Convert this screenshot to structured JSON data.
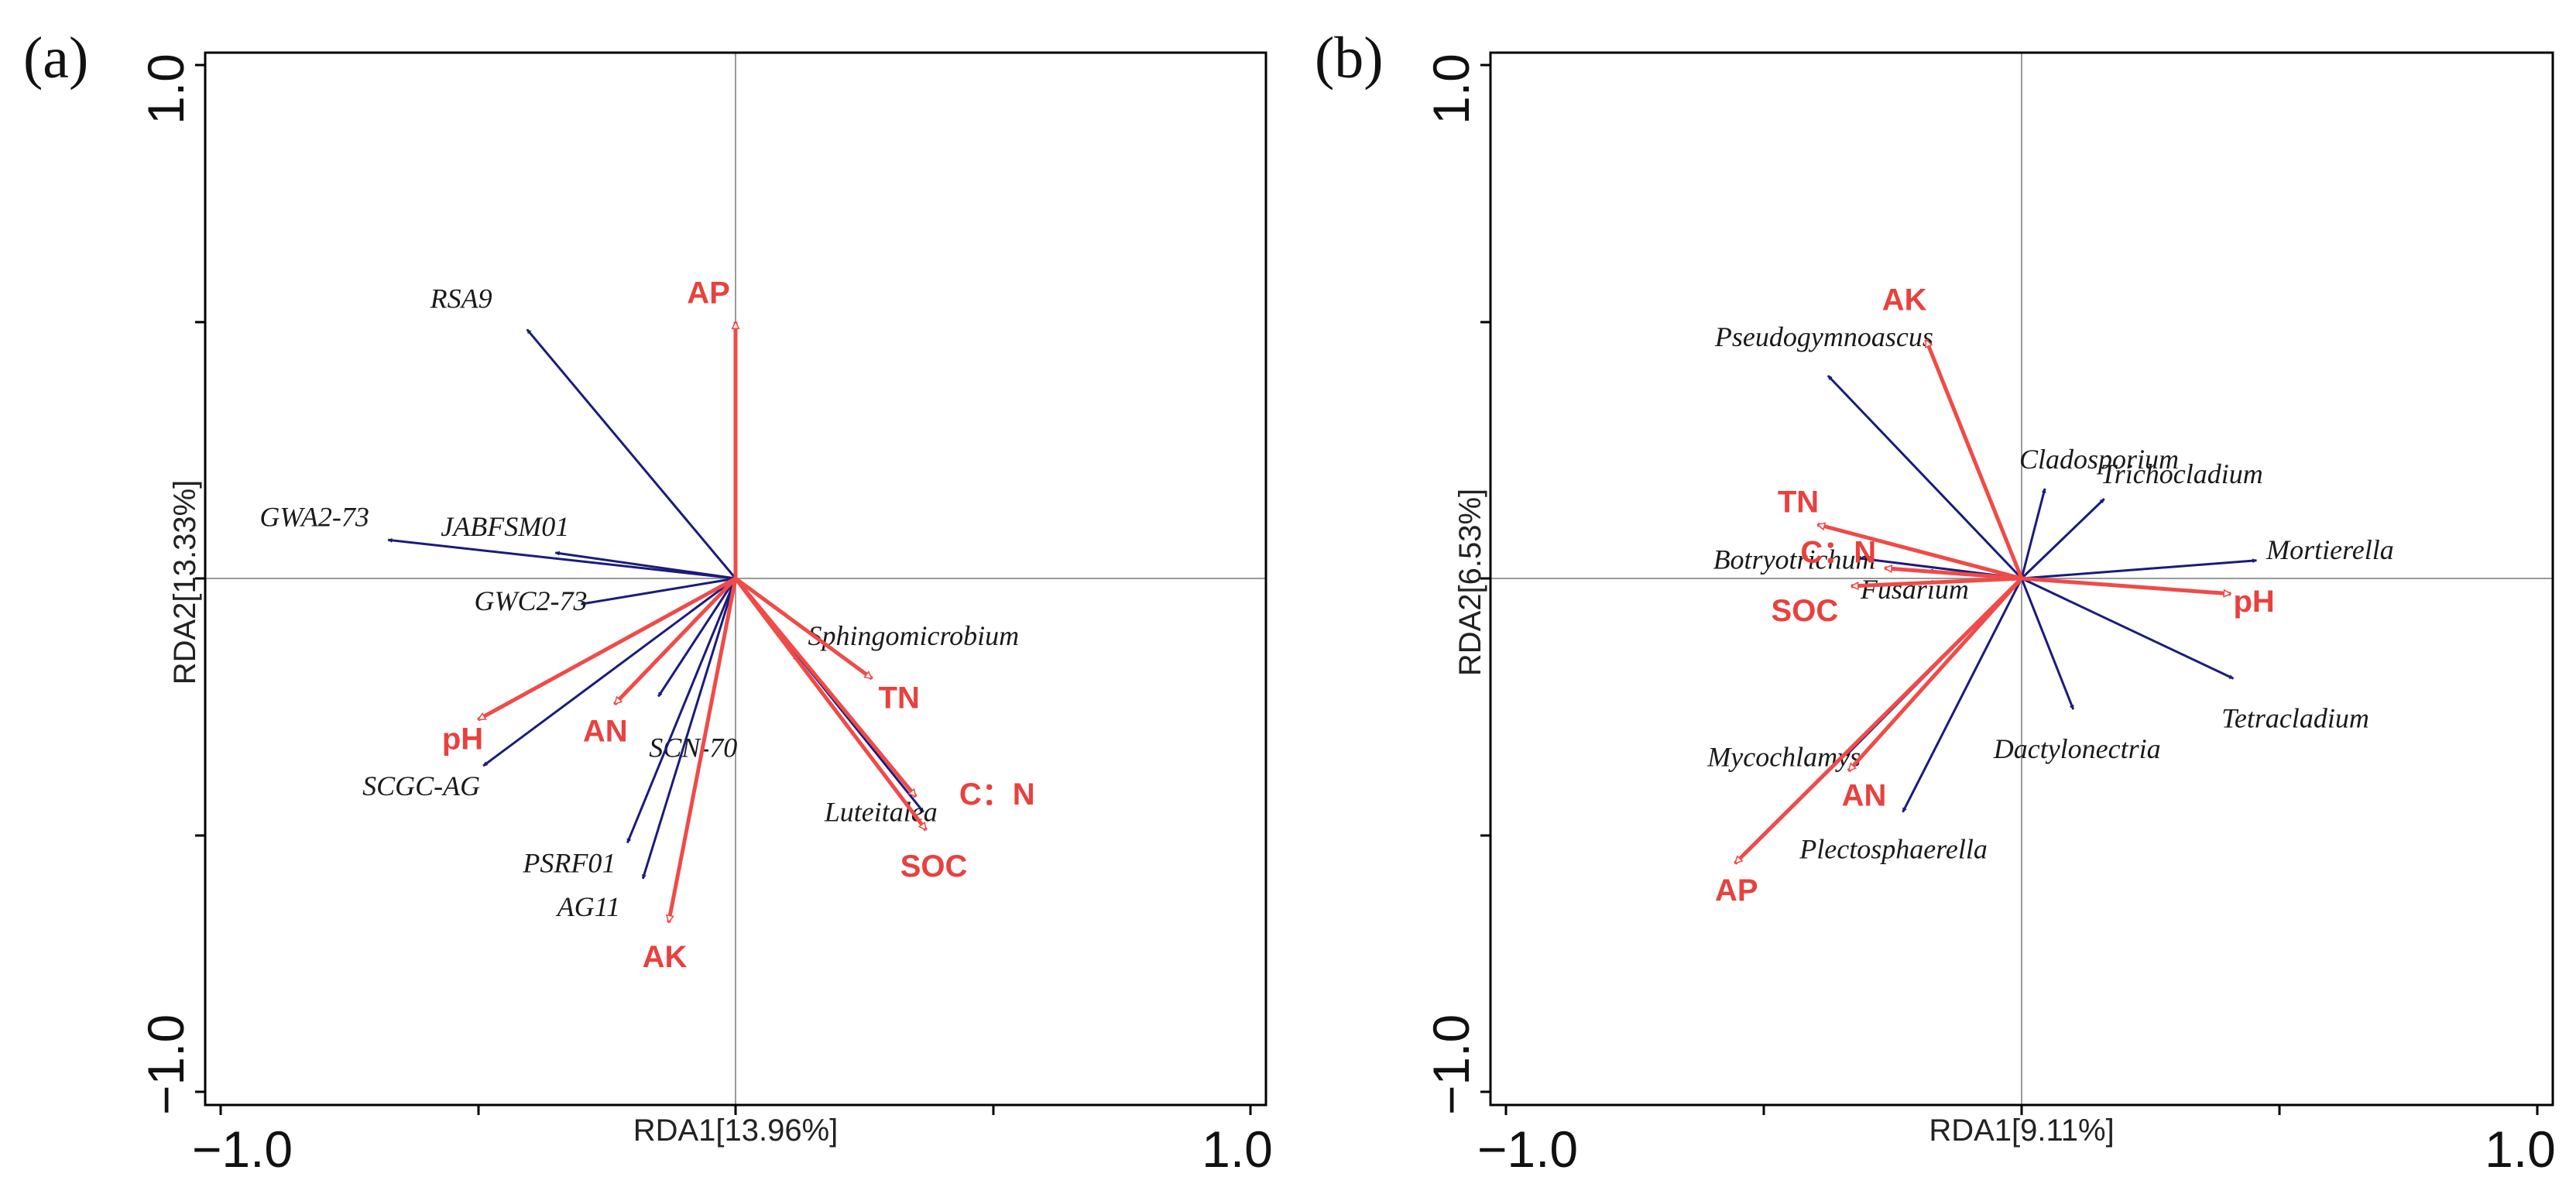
{
  "colors": {
    "species": "#1b1b7c",
    "env": "#ef4b48",
    "env_text": "#e8413e"
  },
  "chart_data": [
    {
      "type": "scatter",
      "panel_label": "(a)",
      "xlabel": "RDA1[13.96%]",
      "ylabel": "RDA2[13.33%]",
      "xlim": [
        -1.0,
        1.0
      ],
      "ylim": [
        -1.0,
        1.0
      ],
      "xtick_labels": [
        "−1.0",
        "1.0"
      ],
      "ytick_labels": [
        "1.0",
        "−1.0"
      ],
      "species": [
        {
          "name": "RSA9",
          "x": -0.405,
          "y": 0.485
        },
        {
          "name": "GWA2-73",
          "x": -0.675,
          "y": 0.075
        },
        {
          "name": "JABFSM01",
          "x": -0.35,
          "y": 0.05
        },
        {
          "name": "GWC2-73",
          "x": -0.3,
          "y": -0.05
        },
        {
          "name": "SCN-70",
          "x": -0.15,
          "y": -0.23
        },
        {
          "name": "SCGC-AG",
          "x": -0.49,
          "y": -0.365
        },
        {
          "name": "PSRF01",
          "x": -0.21,
          "y": -0.515
        },
        {
          "name": "AG11",
          "x": -0.18,
          "y": -0.585
        },
        {
          "name": "Sphingomicrobium",
          "x": 0.12,
          "y": -0.16
        },
        {
          "name": "Luteitalea",
          "x": 0.365,
          "y": -0.455
        }
      ],
      "env": [
        {
          "name": "AP",
          "x": 0.0,
          "y": 0.5
        },
        {
          "name": "pH",
          "x": -0.5,
          "y": -0.275
        },
        {
          "name": "AN",
          "x": -0.235,
          "y": -0.245
        },
        {
          "name": "AK",
          "x": -0.13,
          "y": -0.67
        },
        {
          "name": "TN",
          "x": 0.265,
          "y": -0.195
        },
        {
          "name": "C：N",
          "x": 0.35,
          "y": -0.425
        },
        {
          "name": "SOC",
          "x": 0.37,
          "y": -0.49
        }
      ]
    },
    {
      "type": "scatter",
      "panel_label": "(b)",
      "xlabel": "RDA1[9.11%]",
      "ylabel": "RDA2[6.53%]",
      "xlim": [
        -1.0,
        1.0
      ],
      "ylim": [
        -1.0,
        1.0
      ],
      "xtick_labels": [
        "−1.0",
        "1.0"
      ],
      "ytick_labels": [
        "1.0",
        "−1.0"
      ],
      "species": [
        {
          "name": "Pseudogymnoascus",
          "x": -0.375,
          "y": 0.395
        },
        {
          "name": "Cladosporium",
          "x": 0.045,
          "y": 0.175
        },
        {
          "name": "Trichocladium",
          "x": 0.16,
          "y": 0.155
        },
        {
          "name": "Mortierella",
          "x": 0.455,
          "y": 0.035
        },
        {
          "name": "Botryotrichum",
          "x": -0.32,
          "y": 0.04
        },
        {
          "name": "Fusarium",
          "x": -0.18,
          "y": 0.015
        },
        {
          "name": "Tetracladium",
          "x": 0.41,
          "y": -0.195
        },
        {
          "name": "Dactylonectria",
          "x": 0.1,
          "y": -0.255
        },
        {
          "name": "Mycochlamys",
          "x": -0.34,
          "y": -0.345
        },
        {
          "name": "Plectosphaerella",
          "x": -0.23,
          "y": -0.455
        }
      ],
      "env": [
        {
          "name": "AK",
          "x": -0.185,
          "y": 0.465
        },
        {
          "name": "TN",
          "x": -0.395,
          "y": 0.105
        },
        {
          "name": "C：N",
          "x": -0.265,
          "y": 0.02
        },
        {
          "name": "SOC",
          "x": -0.33,
          "y": -0.015
        },
        {
          "name": "pH",
          "x": 0.405,
          "y": -0.03
        },
        {
          "name": "AN",
          "x": -0.335,
          "y": -0.375
        },
        {
          "name": "AP",
          "x": -0.555,
          "y": -0.555
        }
      ]
    }
  ]
}
